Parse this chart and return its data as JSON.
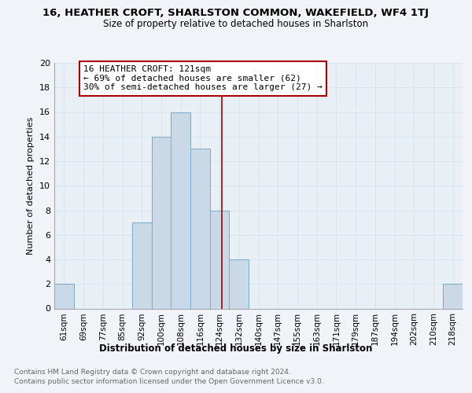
{
  "title": "16, HEATHER CROFT, SHARLSTON COMMON, WAKEFIELD, WF4 1TJ",
  "subtitle": "Size of property relative to detached houses in Sharlston",
  "xlabel": "Distribution of detached houses by size in Sharlston",
  "ylabel": "Number of detached properties",
  "footnote1": "Contains HM Land Registry data © Crown copyright and database right 2024.",
  "footnote2": "Contains public sector information licensed under the Open Government Licence v3.0.",
  "bins": [
    "61sqm",
    "69sqm",
    "77sqm",
    "85sqm",
    "92sqm",
    "100sqm",
    "108sqm",
    "116sqm",
    "124sqm",
    "132sqm",
    "140sqm",
    "147sqm",
    "155sqm",
    "163sqm",
    "171sqm",
    "179sqm",
    "187sqm",
    "194sqm",
    "202sqm",
    "210sqm",
    "218sqm"
  ],
  "values": [
    2,
    0,
    0,
    0,
    7,
    14,
    16,
    13,
    8,
    4,
    0,
    0,
    0,
    0,
    0,
    0,
    0,
    0,
    0,
    0,
    2
  ],
  "bar_color": "#c9d9e8",
  "bar_edge_color": "#7aaac8",
  "highlight_color": "#aa0000",
  "annotation_line1": "16 HEATHER CROFT: 121sqm",
  "annotation_line2": "← 69% of detached houses are smaller (62)",
  "annotation_line3": "30% of semi-detached houses are larger (27) →",
  "ylim": [
    0,
    20
  ],
  "yticks": [
    0,
    2,
    4,
    6,
    8,
    10,
    12,
    14,
    16,
    18,
    20
  ],
  "grid_color": "#d8e4ee",
  "background_color": "#f0f4f8",
  "plot_bg_color": "#e8eff5"
}
